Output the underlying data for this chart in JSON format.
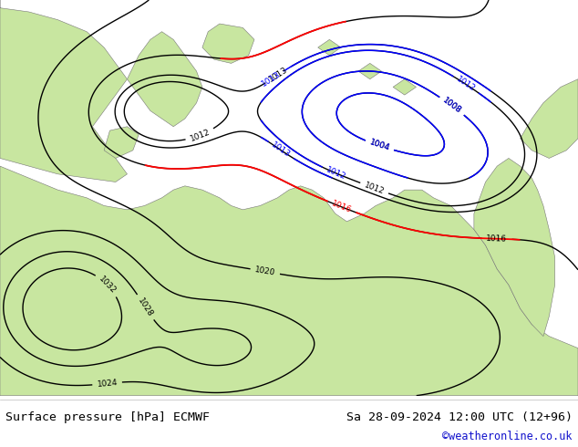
{
  "title_left": "Surface pressure [hPa] ECMWF",
  "title_right": "Sa 28-09-2024 12:00 UTC (12+96)",
  "credit": "©weatheronline.co.uk",
  "ocean_color": "#b8d4e8",
  "land_color": "#c8e6a0",
  "land_color2": "#a8d888",
  "fig_bg": "#ffffff",
  "figsize": [
    6.34,
    4.9
  ],
  "dpi": 100
}
